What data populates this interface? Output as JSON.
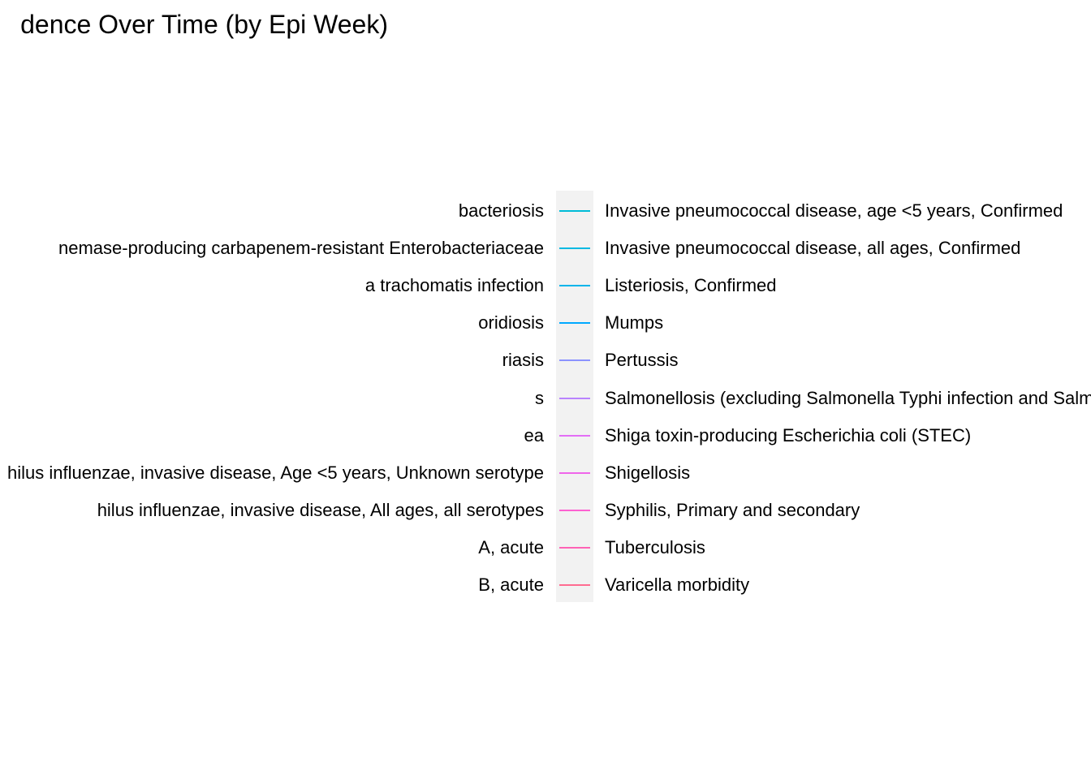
{
  "chart_data": {
    "type": "line",
    "title": "dence Over Time (by Epi Week)",
    "legend": {
      "placement": "center",
      "left_entries": [
        "bacteriosis",
        "nemase-producing carbapenem-resistant Enterobacteriaceae",
        "a trachomatis infection",
        "oridiosis",
        "riasis",
        "s",
        "ea",
        "hilus influenzae, invasive disease, Age <5 years, Unknown serotype",
        "hilus influenzae, invasive disease, All ages, all serotypes",
        "A, acute",
        "B, acute"
      ],
      "right_entries": [
        {
          "label": "Invasive pneumococcal disease, age <5 years, Confirmed",
          "color": "#00bcd8"
        },
        {
          "label": "Invasive pneumococcal disease, all ages, Confirmed",
          "color": "#00b9e2"
        },
        {
          "label": "Listeriosis, Confirmed",
          "color": "#00b5ea"
        },
        {
          "label": "Mumps",
          "color": "#00a9ff"
        },
        {
          "label": "Pertussis",
          "color": "#8b93ff"
        },
        {
          "label": "Salmonellosis (excluding Salmonella Typhi infection and Salm",
          "color": "#b983ff"
        },
        {
          "label": "Shiga toxin-producing Escherichia coli (STEC)",
          "color": "#e36ef6"
        },
        {
          "label": "Shigellosis",
          "color": "#f066ea"
        },
        {
          "label": "Syphilis, Primary and secondary",
          "color": "#fd61d1"
        },
        {
          "label": "Tuberculosis",
          "color": "#ff63b6"
        },
        {
          "label": "Varicella morbidity",
          "color": "#ff6c91"
        }
      ]
    },
    "series": []
  }
}
